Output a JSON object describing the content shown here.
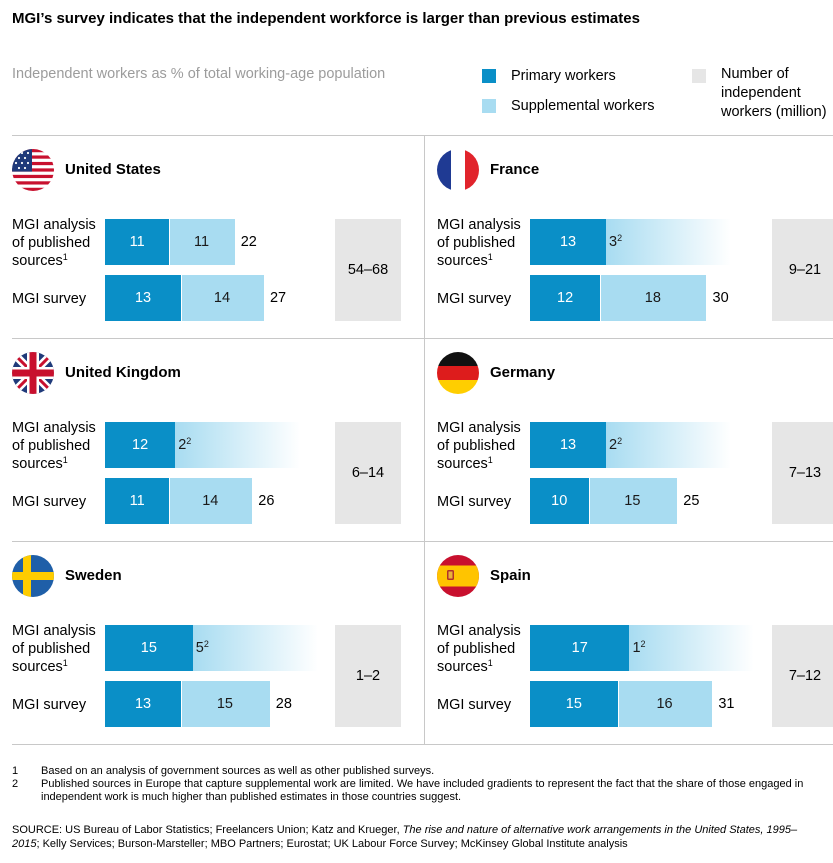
{
  "title": "MGI’s survey indicates that the independent workforce is larger than previous estimates",
  "subtitle": "Independent workers as % of total working-age population",
  "legend": {
    "primary": "Primary workers",
    "supplemental": "Supplemental workers",
    "number_label": "Number of independent workers (million)",
    "number_lines": [
      "Number of",
      "independent",
      "workers (million)"
    ],
    "colors": {
      "primary": "#0a8fc7",
      "supplemental": "#a8dcf1",
      "number": "#e6e6e6"
    }
  },
  "row_labels": {
    "published_lines": [
      "MGI analysis",
      "of published",
      "sources"
    ],
    "published_footnote": "1",
    "survey": "MGI survey"
  },
  "chart_data": {
    "type": "bar",
    "orientation": "horizontal",
    "stacked": true,
    "units": "% of total working-age population",
    "series": [
      {
        "name": "Primary workers",
        "color": "#0a8fc7"
      },
      {
        "name": "Supplemental workers",
        "color": "#a8dcf1"
      }
    ],
    "countries": [
      {
        "name": "United States",
        "flag": "us-flag",
        "range": "54–68",
        "published": {
          "primary": 11,
          "supplemental": 11,
          "supplemental_footnote": "",
          "total": "22",
          "gradient": false
        },
        "survey": {
          "primary": 13,
          "supplemental": 14,
          "total": "27"
        }
      },
      {
        "name": "France",
        "flag": "france-flag",
        "range": "9–21",
        "published": {
          "primary": 13,
          "supplemental": 3,
          "supplemental_footnote": "2",
          "total": "",
          "gradient": true
        },
        "survey": {
          "primary": 12,
          "supplemental": 18,
          "total": "30"
        }
      },
      {
        "name": "United Kingdom",
        "flag": "uk-flag",
        "range": "6–14",
        "published": {
          "primary": 12,
          "supplemental": 2,
          "supplemental_footnote": "2",
          "total": "",
          "gradient": true
        },
        "survey": {
          "primary": 11,
          "supplemental": 14,
          "total": "26"
        }
      },
      {
        "name": "Germany",
        "flag": "germany-flag",
        "range": "7–13",
        "published": {
          "primary": 13,
          "supplemental": 2,
          "supplemental_footnote": "2",
          "total": "",
          "gradient": true
        },
        "survey": {
          "primary": 10,
          "supplemental": 15,
          "total": "25"
        }
      },
      {
        "name": "Sweden",
        "flag": "sweden-flag",
        "range": "1–2",
        "published": {
          "primary": 15,
          "supplemental": 5,
          "supplemental_footnote": "2",
          "total": "",
          "gradient": true
        },
        "survey": {
          "primary": 13,
          "supplemental": 15,
          "total": "28"
        }
      },
      {
        "name": "Spain",
        "flag": "spain-flag",
        "range": "7–12",
        "published": {
          "primary": 17,
          "supplemental": 1,
          "supplemental_footnote": "2",
          "total": "",
          "gradient": true
        },
        "survey": {
          "primary": 15,
          "supplemental": 16,
          "total": "31"
        }
      }
    ]
  },
  "footnotes": [
    {
      "num": "1",
      "text": "Based on an analysis of government sources as well as other published surveys."
    },
    {
      "num": "2",
      "text": "Published sources in Europe that capture supplemental work are limited. We have included gradients to represent the fact that the share of those engaged in independent work is much higher than published estimates in those countries suggest."
    }
  ],
  "source": {
    "prefix": "SOURCE:  US Bureau of Labor Statistics; Freelancers Union; Katz and Krueger, ",
    "italic": "The rise and nature of alternative work arrangements in the United States, 1995–2015",
    "suffix": "; Kelly Services; Burson-Marsteller; MBO Partners; Eurostat; UK Labour Force Survey; McKinsey Global Institute analysis"
  }
}
